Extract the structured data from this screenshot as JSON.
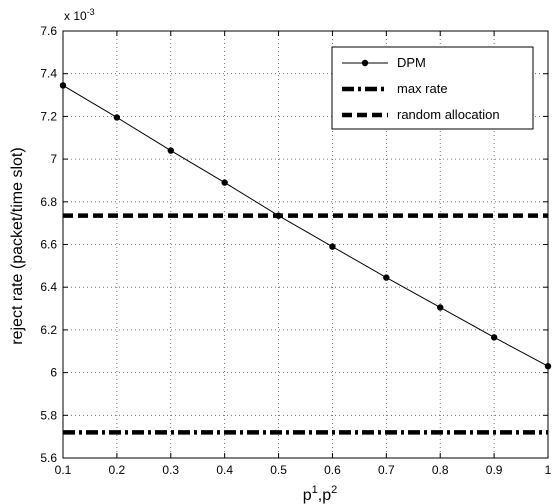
{
  "chart_data": {
    "type": "line",
    "title": "",
    "xlabel": "p",
    "xlabel_superscripts": [
      "1",
      "2"
    ],
    "ylabel": "reject rate (packet/time slot)",
    "y_exponent_label": "x 10",
    "y_exponent_power": "-3",
    "xlim": [
      0.1,
      1.0
    ],
    "ylim": [
      5.6,
      7.6
    ],
    "grid": true,
    "legend_position": "top-right",
    "x_ticks": [
      0.1,
      0.2,
      0.3,
      0.4,
      0.5,
      0.6,
      0.7,
      0.8,
      0.9,
      1.0
    ],
    "x_tick_labels": [
      "0.1",
      "0.2",
      "0.3",
      "0.4",
      "0.5",
      "0.6",
      "0.7",
      "0.8",
      "0.9",
      "1"
    ],
    "y_ticks": [
      5.6,
      5.8,
      6.0,
      6.2,
      6.4,
      6.6,
      6.8,
      7.0,
      7.2,
      7.4,
      7.6
    ],
    "y_tick_labels": [
      "5.6",
      "5.8",
      "6",
      "6.2",
      "6.4",
      "6.6",
      "6.8",
      "7",
      "7.2",
      "7.4",
      "7.6"
    ],
    "series": [
      {
        "name": "DPM",
        "style": "solid-with-markers",
        "color": "#000000",
        "x": [
          0.1,
          0.2,
          0.3,
          0.4,
          0.5,
          0.6,
          0.7,
          0.8,
          0.9,
          1.0
        ],
        "y": [
          7.345,
          7.195,
          7.04,
          6.89,
          6.735,
          6.59,
          6.445,
          6.305,
          6.165,
          6.03
        ]
      },
      {
        "name": "max rate",
        "style": "dash-dot",
        "color": "#000000",
        "x": [
          0.1,
          1.0
        ],
        "y": [
          5.72,
          5.72
        ]
      },
      {
        "name": "random allocation",
        "style": "dashed",
        "color": "#000000",
        "x": [
          0.1,
          1.0
        ],
        "y": [
          6.735,
          6.735
        ]
      }
    ]
  }
}
